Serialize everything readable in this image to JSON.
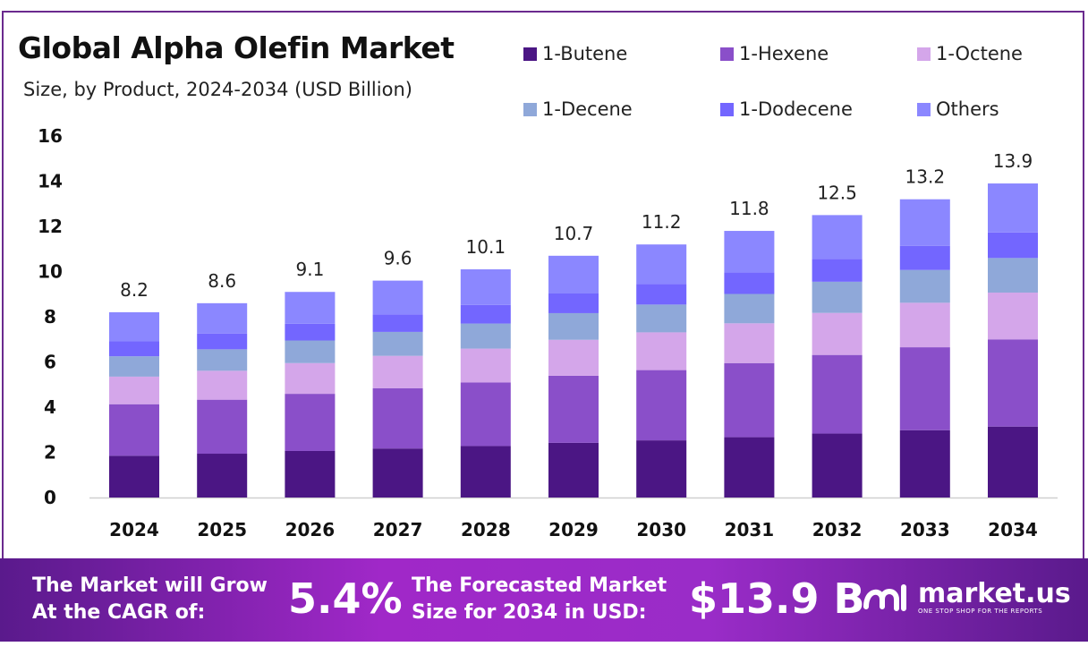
{
  "chart_data": {
    "type": "bar",
    "stacked": true,
    "title": "Global Alpha Olefin Market",
    "subtitle": "Size, by Product, 2024-2034 (USD Billion)",
    "categories": [
      "2024",
      "2025",
      "2026",
      "2027",
      "2028",
      "2029",
      "2030",
      "2031",
      "2032",
      "2033",
      "2034"
    ],
    "totals": [
      "8.2",
      "8.6",
      "9.1",
      "9.6",
      "10.1",
      "10.7",
      "11.2",
      "11.8",
      "12.5",
      "13.2",
      "13.9"
    ],
    "series": [
      {
        "name": "1-Butene",
        "color": "#4b1684",
        "values": [
          1.85,
          1.94,
          2.06,
          2.17,
          2.28,
          2.42,
          2.53,
          2.67,
          2.83,
          2.98,
          3.14
        ]
      },
      {
        "name": "1-Hexene",
        "color": "#8a4fc9",
        "values": [
          2.28,
          2.39,
          2.53,
          2.67,
          2.81,
          2.97,
          3.11,
          3.28,
          3.48,
          3.67,
          3.86
        ]
      },
      {
        "name": "1-Octene",
        "color": "#d4a6ea",
        "values": [
          1.22,
          1.28,
          1.36,
          1.43,
          1.5,
          1.59,
          1.67,
          1.76,
          1.86,
          1.97,
          2.07
        ]
      },
      {
        "name": "1-Decene",
        "color": "#8fa8d9",
        "values": [
          0.9,
          0.95,
          1.0,
          1.06,
          1.11,
          1.18,
          1.23,
          1.3,
          1.38,
          1.45,
          1.53
        ]
      },
      {
        "name": "1-Dodecene",
        "color": "#7366ff",
        "values": [
          0.66,
          0.7,
          0.74,
          0.78,
          0.82,
          0.87,
          0.91,
          0.96,
          1.01,
          1.07,
          1.13
        ]
      },
      {
        "name": "Others",
        "color": "#8b87ff",
        "values": [
          1.29,
          1.34,
          1.41,
          1.49,
          1.58,
          1.67,
          1.75,
          1.83,
          1.94,
          2.06,
          2.17
        ]
      }
    ],
    "yticks": [
      "0",
      "2",
      "4",
      "6",
      "8",
      "10",
      "12",
      "14",
      "16"
    ],
    "ylim": [
      0,
      16
    ],
    "grid": false,
    "legend_position": "top-right"
  },
  "footer": {
    "cagr_label_1": "The Market will Grow",
    "cagr_label_2": "At the CAGR of:",
    "cagr_value": "5.4%",
    "forecast_label_1": "The Forecasted Market",
    "forecast_label_2": "Size for 2034 in USD:",
    "forecast_value": "$13.9 B",
    "brand": "market.us",
    "brand_tagline": "ONE STOP SHOP FOR THE REPORTS"
  }
}
